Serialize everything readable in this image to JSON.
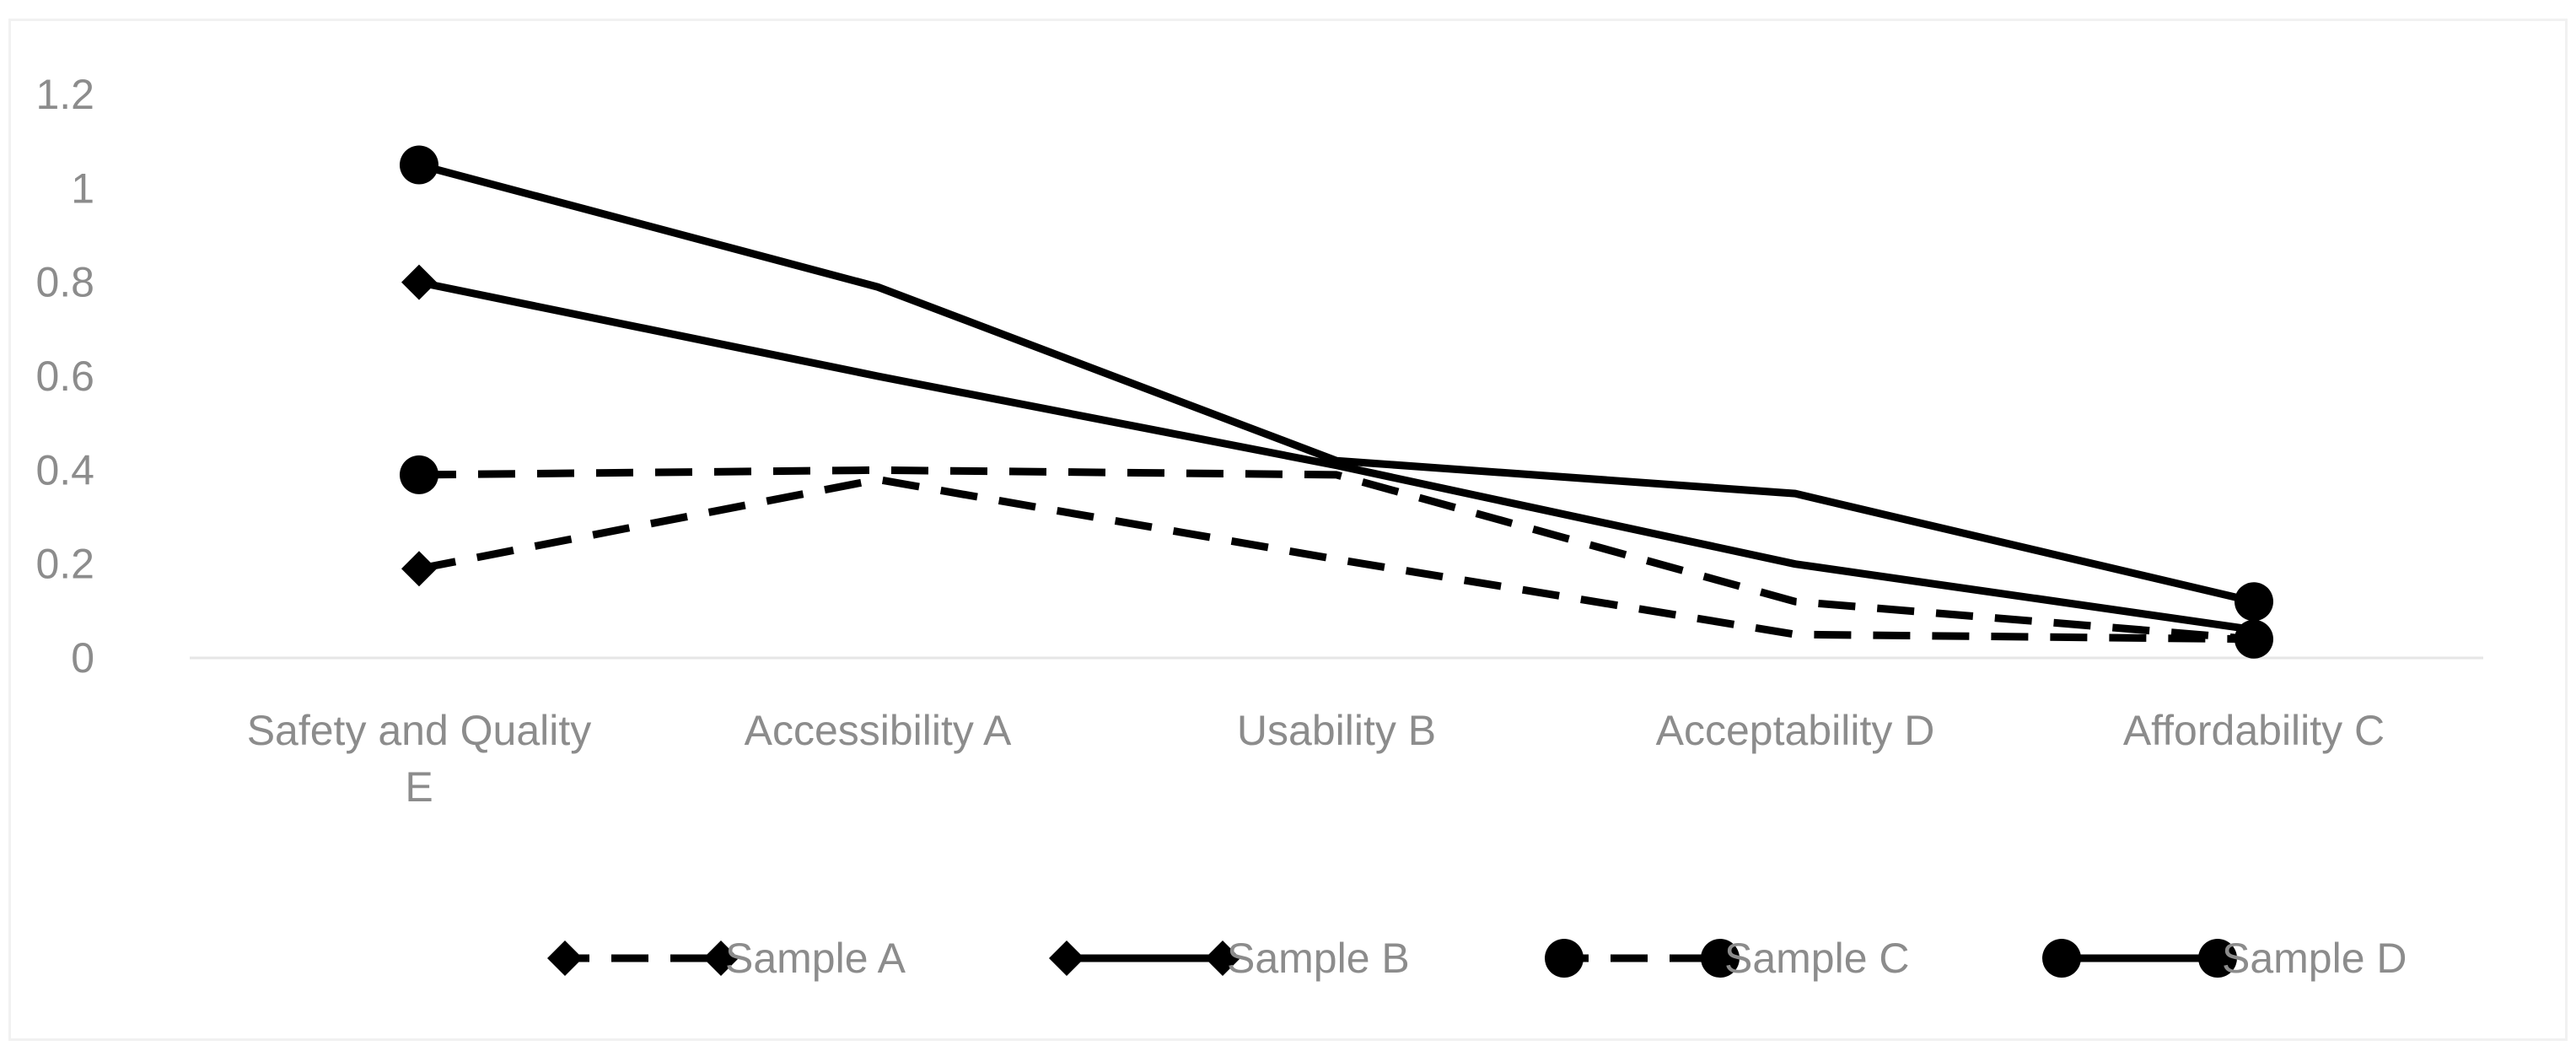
{
  "chart_data": {
    "type": "line",
    "title": "",
    "xlabel": "",
    "ylabel": "",
    "categories": [
      [
        "Safety and Quality",
        "E"
      ],
      [
        "Accessibility A"
      ],
      [
        "Usability B"
      ],
      [
        "Acceptability D"
      ],
      [
        "Affordability C"
      ]
    ],
    "ylim": [
      0,
      1.2
    ],
    "yticks": [
      "0",
      "0.2",
      "0.4",
      "0.6",
      "0.8",
      "1",
      "1.2"
    ],
    "grid": false,
    "legend_position": "bottom",
    "series": [
      {
        "name": "Sample A",
        "values": [
          0.19,
          0.38,
          0.21,
          0.05,
          0.04
        ],
        "dash": "dashed",
        "marker": "diamond",
        "marker_on_points": [
          0
        ]
      },
      {
        "name": "Sample B",
        "values": [
          0.8,
          0.6,
          0.41,
          0.2,
          0.06
        ],
        "dash": "solid",
        "marker": "diamond",
        "marker_on_points": [
          0
        ]
      },
      {
        "name": "Sample C",
        "values": [
          0.39,
          0.4,
          0.39,
          0.12,
          0.04
        ],
        "dash": "dashed",
        "marker": "circle",
        "marker_on_points": [
          0,
          4
        ]
      },
      {
        "name": "Sample D",
        "values": [
          1.05,
          0.79,
          0.42,
          0.35,
          0.12
        ],
        "dash": "solid",
        "marker": "circle",
        "marker_on_points": [
          0,
          4
        ]
      }
    ],
    "colors": {
      "line": "#000000",
      "tick_text": "#8c8c8c",
      "axis": "#e6e6e6"
    }
  }
}
